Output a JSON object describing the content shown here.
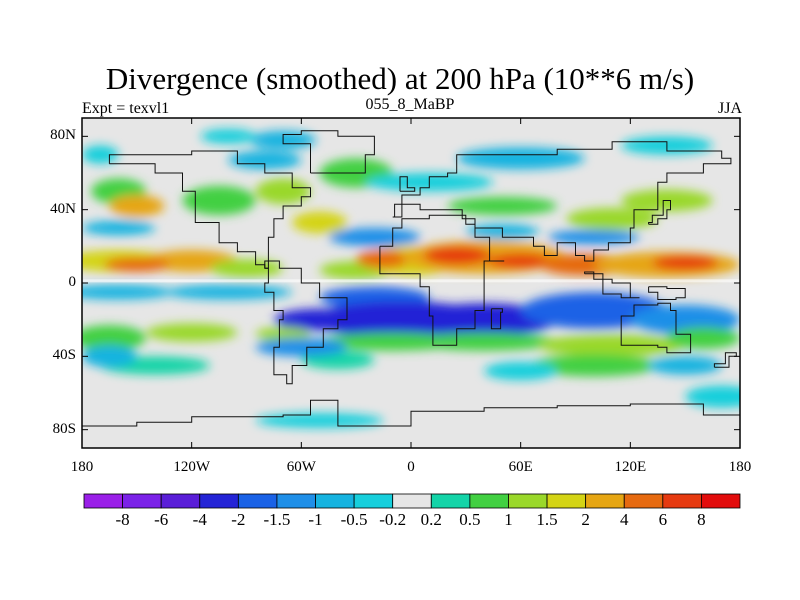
{
  "title": "Divergence (smoothed) at 200 hPa (10**6 m/s)",
  "experiment": "Expt = texvl1",
  "case": "055_8_MaBP",
  "season": "JJA",
  "chart_data": {
    "type": "heatmap",
    "variable": "Divergence (smoothed) at 200 hPa",
    "units": "10**6 m/s",
    "x_range": [
      -180,
      180
    ],
    "y_range": [
      -90,
      90
    ],
    "x_ticks": [
      "180",
      "120W",
      "60W",
      "0",
      "60E",
      "120E",
      "180"
    ],
    "x_tick_values": [
      -180,
      -120,
      -60,
      0,
      60,
      120,
      180
    ],
    "y_ticks": [
      "80N",
      "40N",
      "0",
      "40S",
      "80S"
    ],
    "y_tick_values": [
      80,
      40,
      0,
      -40,
      -80
    ],
    "colorbar_labels": [
      "-8",
      "-6",
      "-4",
      "-2",
      "-1.5",
      "-1",
      "-0.5",
      "-0.2",
      "0.2",
      "0.5",
      "1",
      "1.5",
      "2",
      "4",
      "6",
      "8"
    ],
    "colorbar_colors": [
      "#9a1fe8",
      "#7b22e8",
      "#5a1ed8",
      "#2424d6",
      "#1a62e6",
      "#1f8fe8",
      "#16b3e0",
      "#17cfdc",
      "#e6e6e6",
      "#14d4a8",
      "#42d042",
      "#9ad82a",
      "#d4d415",
      "#e6a613",
      "#e66a10",
      "#e63a10",
      "#e20c0c"
    ]
  }
}
